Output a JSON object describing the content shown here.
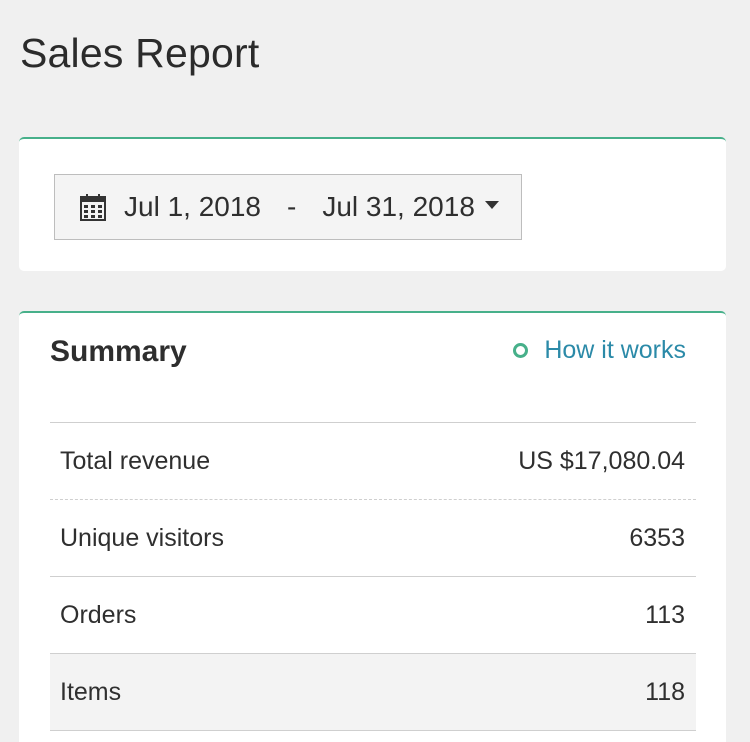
{
  "page": {
    "title": "Sales Report"
  },
  "date_range": {
    "start": "Jul 1, 2018",
    "separator": "-",
    "end": "Jul 31, 2018",
    "icon": "calendar-icon"
  },
  "summary": {
    "title": "Summary",
    "how_it_works": "How it works",
    "rows": [
      {
        "label": "Total revenue",
        "value": "US $17,080.04"
      },
      {
        "label": "Unique visitors",
        "value": "6353"
      },
      {
        "label": "Orders",
        "value": "113"
      },
      {
        "label": "Items",
        "value": "118"
      }
    ]
  },
  "colors": {
    "accent": "#47b08a",
    "link": "#2b8aa8",
    "background": "#f0f0f0"
  }
}
